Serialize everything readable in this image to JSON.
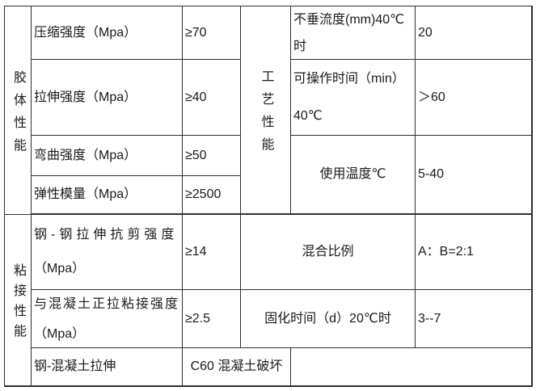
{
  "colloid": {
    "label": "胶体性能",
    "rows": [
      {
        "name": "压缩强度（Mpa）",
        "value": "≥70"
      },
      {
        "name": "拉伸强度（Mpa）",
        "value": "≥40"
      },
      {
        "name": "弯曲强度（Mpa）",
        "value": "≥50"
      },
      {
        "name": "弹性模量（Mpa）",
        "value": "≥2500"
      }
    ]
  },
  "process": {
    "label": "工艺性能",
    "rows": [
      {
        "name": "不垂流度(mm)40℃\n时",
        "value": "20"
      },
      {
        "name": "可操作时间（min）\n40℃",
        "value": "＞60"
      },
      {
        "name": "使用温度℃",
        "value": "5-40"
      }
    ]
  },
  "bonding": {
    "label": "粘接性能",
    "left_rows": [
      {
        "name_line1": "钢-钢拉伸抗剪强度",
        "name_line2": "（Mpa）",
        "value": "≥14"
      },
      {
        "name_line1": "与混凝土正拉粘接强度",
        "name_line2": "（Mpa）",
        "value": "≥2.5"
      },
      {
        "name": "钢-混凝土拉伸",
        "value": "C60 混凝土破坏",
        "value2": ""
      }
    ],
    "right_rows": [
      {
        "name": "混合比例",
        "value": "A：B=2:1"
      },
      {
        "name": "固化时间（d）20℃时",
        "value": "3--7"
      }
    ]
  },
  "colors": {
    "border": "#2f2f2f",
    "text": "#1a1a1a",
    "background": "#ffffff"
  }
}
